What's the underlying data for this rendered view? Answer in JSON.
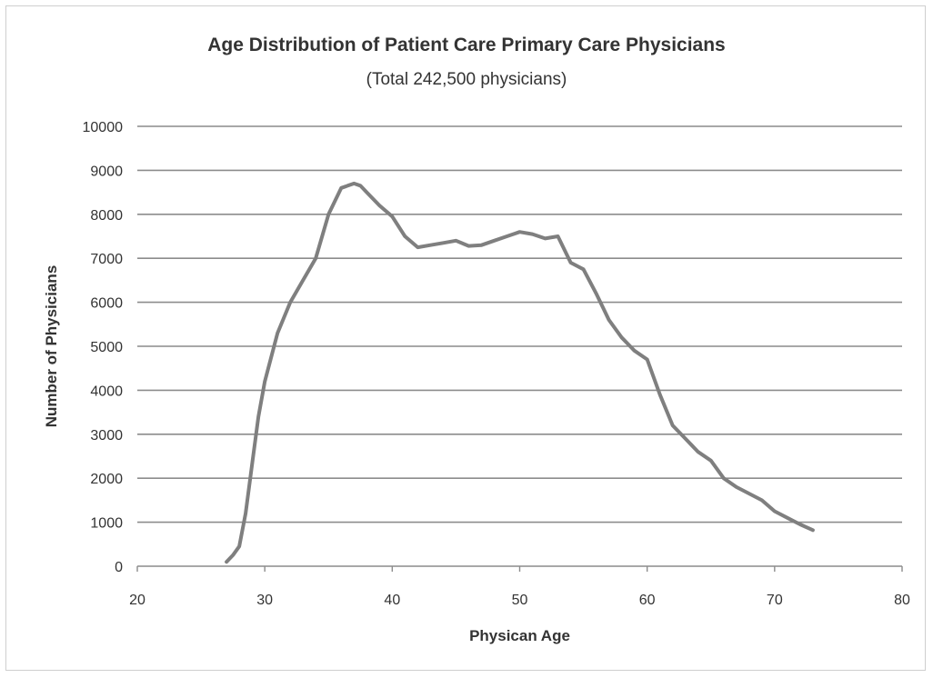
{
  "chart_data": {
    "type": "line",
    "title": "Age Distribution of Patient Care Primary Care Physicians",
    "subtitle": "(Total 242,500  physicians)",
    "xlabel": "Physican Age",
    "ylabel": "Number of Physicians",
    "xlim": [
      20,
      80
    ],
    "ylim": [
      0,
      10000
    ],
    "xticks": [
      20,
      30,
      40,
      50,
      60,
      70,
      80
    ],
    "yticks": [
      0,
      1000,
      2000,
      3000,
      4000,
      5000,
      6000,
      7000,
      8000,
      9000,
      10000
    ],
    "grid": "horizontal",
    "series": [
      {
        "color": "#7f7f7f",
        "x": [
          27,
          27.5,
          28,
          28.5,
          29,
          29.5,
          30,
          31,
          32,
          33,
          34,
          35,
          36,
          37,
          37.5,
          38,
          39,
          40,
          41,
          42,
          43,
          44,
          45,
          46,
          47,
          48,
          49,
          50,
          51,
          52,
          53,
          54,
          55,
          56,
          57,
          58,
          59,
          60,
          61,
          62,
          63,
          64,
          65,
          66,
          67,
          68,
          69,
          70,
          71,
          72,
          73
        ],
        "y": [
          100,
          250,
          450,
          1200,
          2300,
          3400,
          4200,
          5300,
          6000,
          6500,
          7000,
          8000,
          8600,
          8700,
          8650,
          8500,
          8200,
          7950,
          7500,
          7250,
          7300,
          7350,
          7400,
          7280,
          7300,
          7400,
          7500,
          7600,
          7550,
          7450,
          7500,
          6900,
          6750,
          6200,
          5600,
          5200,
          4900,
          4700,
          3900,
          3200,
          2900,
          2600,
          2400,
          2000,
          1800,
          1650,
          1500,
          1250,
          1100,
          950,
          820
        ]
      }
    ]
  }
}
